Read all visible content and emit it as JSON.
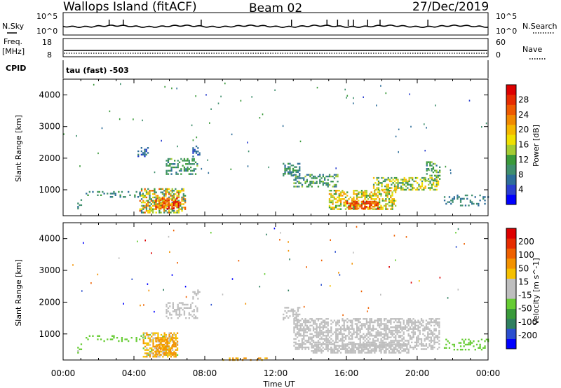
{
  "header": {
    "station": "Wallops Island (fitACF)",
    "beam": "Beam 02",
    "date": "27/Dec/2019"
  },
  "panels": {
    "nsky": {
      "label": "N.Sky",
      "left_ticks": [
        "10^5",
        "10^0"
      ],
      "right_ticks": [
        "10^5",
        "10^0"
      ],
      "right_label": "N.Search",
      "spikes_ut": [
        2.6,
        3.4,
        7.8,
        12.9,
        14.9,
        15.5,
        16.1,
        16.4,
        17.2,
        17.9,
        20.6
      ]
    },
    "freq": {
      "label_line1": "Freq.",
      "label_line2": "[MHz]",
      "left_ticks": [
        "18",
        "8"
      ],
      "right_ticks": [
        "60",
        "0"
      ],
      "right_label": "Nave"
    },
    "cpid": {
      "label": "CPID",
      "text": "tau (fast) -503"
    }
  },
  "axes": {
    "xlabel": "Time UT",
    "xticks": [
      "00:00",
      "04:00",
      "08:00",
      "12:00",
      "16:00",
      "20:00",
      "00:00"
    ],
    "ylabel": "Slant Range [km]",
    "yticks": [
      "1000",
      "2000",
      "3000",
      "4000"
    ]
  },
  "colorbars": {
    "power": {
      "label": "Power [dB]",
      "ticks": [
        "28",
        "24",
        "20",
        "16",
        "12",
        "8",
        "4"
      ],
      "colors": [
        "#0000ff",
        "#2b3fcf",
        "#2e6e9a",
        "#3f8f6d",
        "#3a9a3a",
        "#a5cc32",
        "#f0e000",
        "#f5b800",
        "#f18a00",
        "#ee5a00",
        "#e62b00",
        "#dd0000"
      ]
    },
    "velocity": {
      "label": "Velocity [m s^-1]",
      "ticks": [
        "200",
        "100",
        "50",
        "15",
        "-15",
        "-50",
        "-100",
        "-200"
      ],
      "colors": [
        "#0000ff",
        "#2b4fcf",
        "#2f7f5f",
        "#3a9a3a",
        "#66cc33",
        "#bebebe",
        "#bebebe",
        "#f5c000",
        "#f39200",
        "#ee6000",
        "#e62b00",
        "#dd0000"
      ]
    }
  },
  "chart_data": [
    {
      "type": "heatmap",
      "name": "Power",
      "x_range_ut": [
        0,
        24
      ],
      "ylim_km": [
        180,
        4500
      ],
      "value_range": [
        0,
        30
      ],
      "units": "dB",
      "scatter_regions": [
        {
          "ut": [
            0.8,
            1.0
          ],
          "range": [
            400,
            700
          ],
          "value": [
            6,
            10
          ],
          "density": 0.5
        },
        {
          "ut": [
            1.0,
            4.5
          ],
          "range": [
            780,
            960
          ],
          "value": [
            5,
            11
          ],
          "density": 0.18
        },
        {
          "ut": [
            4.3,
            6.9
          ],
          "range": [
            300,
            1050
          ],
          "value": [
            6,
            24
          ],
          "density": 0.55
        },
        {
          "ut": [
            5.2,
            6.5
          ],
          "range": [
            400,
            750
          ],
          "value": [
            18,
            29
          ],
          "density": 0.6
        },
        {
          "ut": [
            5.8,
            7.6
          ],
          "range": [
            1500,
            2000
          ],
          "value": [
            6,
            13
          ],
          "density": 0.45
        },
        {
          "ut": [
            4.2,
            4.8
          ],
          "range": [
            2050,
            2350
          ],
          "value": [
            4,
            8
          ],
          "density": 0.3
        },
        {
          "ut": [
            7.3,
            7.7
          ],
          "range": [
            2050,
            2400
          ],
          "value": [
            4,
            8
          ],
          "density": 0.3
        },
        {
          "ut": [
            12.4,
            13.4
          ],
          "range": [
            1450,
            1850
          ],
          "value": [
            5,
            12
          ],
          "density": 0.45
        },
        {
          "ut": [
            13.0,
            15.5
          ],
          "range": [
            1100,
            1500
          ],
          "value": [
            6,
            14
          ],
          "density": 0.45
        },
        {
          "ut": [
            15.0,
            18.8
          ],
          "range": [
            400,
            1000
          ],
          "value": [
            10,
            22
          ],
          "density": 0.55
        },
        {
          "ut": [
            16.0,
            17.8
          ],
          "range": [
            400,
            650
          ],
          "value": [
            20,
            29
          ],
          "density": 0.6
        },
        {
          "ut": [
            17.5,
            21.2
          ],
          "range": [
            1000,
            1400
          ],
          "value": [
            8,
            20
          ],
          "density": 0.5
        },
        {
          "ut": [
            20.5,
            21.3
          ],
          "range": [
            1300,
            1900
          ],
          "value": [
            6,
            14
          ],
          "density": 0.4
        },
        {
          "ut": [
            21.5,
            24.0
          ],
          "range": [
            500,
            850
          ],
          "value": [
            5,
            10
          ],
          "density": 0.25
        }
      ]
    },
    {
      "type": "heatmap",
      "name": "Velocity",
      "x_range_ut": [
        0,
        24
      ],
      "ylim_km": [
        180,
        4500
      ],
      "value_range": [
        -250,
        250
      ],
      "units": "m s^-1",
      "scatter_regions": [
        {
          "ut": [
            0.8,
            1.0
          ],
          "range": [
            400,
            700
          ],
          "value": [
            -15,
            40
          ],
          "density": 0.5
        },
        {
          "ut": [
            1.0,
            4.5
          ],
          "range": [
            780,
            960
          ],
          "value": [
            15,
            50
          ],
          "density": 0.15
        },
        {
          "ut": [
            4.5,
            6.5
          ],
          "range": [
            300,
            1050
          ],
          "value": [
            -80,
            20
          ],
          "density": 0.55
        },
        {
          "ut": [
            5.2,
            6.3
          ],
          "range": [
            350,
            900
          ],
          "value": [
            -90,
            -40
          ],
          "density": 0.6
        },
        {
          "ut": [
            5.8,
            7.6
          ],
          "range": [
            1500,
            2000
          ],
          "value": [
            -14,
            14
          ],
          "density": 0.4
        },
        {
          "ut": [
            7.3,
            7.7
          ],
          "range": [
            2050,
            2400
          ],
          "value": [
            -14,
            14
          ],
          "density": 0.3
        },
        {
          "ut": [
            12.4,
            13.4
          ],
          "range": [
            1450,
            1850
          ],
          "value": [
            -14,
            14
          ],
          "density": 0.4
        },
        {
          "ut": [
            13.0,
            21.2
          ],
          "range": [
            500,
            1500
          ],
          "value": [
            -14,
            14
          ],
          "density": 0.55
        },
        {
          "ut": [
            14.0,
            19.5
          ],
          "range": [
            400,
            700
          ],
          "value": [
            -14,
            14
          ],
          "density": 0.6
        },
        {
          "ut": [
            9.0,
            11.5
          ],
          "range": [
            180,
            260
          ],
          "value": [
            -80,
            -30
          ],
          "density": 0.25
        },
        {
          "ut": [
            21.5,
            24.0
          ],
          "range": [
            500,
            850
          ],
          "value": [
            15,
            45
          ],
          "density": 0.25
        }
      ]
    }
  ]
}
